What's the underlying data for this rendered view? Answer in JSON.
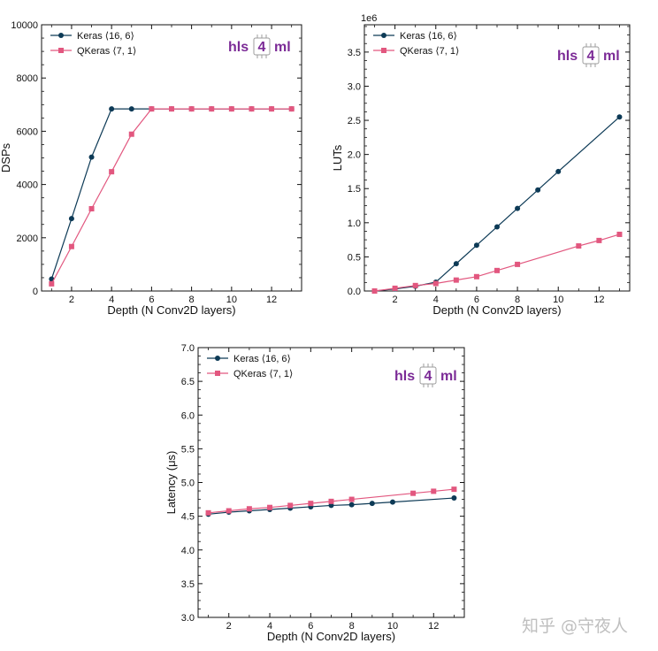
{
  "colors": {
    "keras": "#0d3a56",
    "qkeras": "#e2577f",
    "logo_purple": "#7b2a96",
    "logo_box": "#9c9c9c"
  },
  "logo": {
    "part1": "hls",
    "part2": "4",
    "part3": "ml"
  },
  "watermark": "知乎 @守夜人",
  "chart_data": [
    {
      "type": "line",
      "xlabel": "Depth (N Conv2D layers)",
      "ylabel": "DSPs",
      "offset_label": "",
      "xlim": [
        0.5,
        13.5
      ],
      "ylim": [
        0,
        10000
      ],
      "xticks": [
        2,
        4,
        6,
        8,
        10,
        12
      ],
      "xtick_labels": [
        "2",
        "4",
        "6",
        "8",
        "10",
        "12"
      ],
      "yticks": [
        0,
        2000,
        4000,
        6000,
        8000,
        10000
      ],
      "ytick_labels": [
        "0",
        "2000",
        "4000",
        "6000",
        "8000",
        "10000"
      ],
      "legend_position": "top-left",
      "grid": false,
      "series": [
        {
          "name": "Keras ⟨16, 6⟩",
          "marker": "circle",
          "x": [
            1,
            2,
            3,
            4,
            5,
            6,
            7,
            8,
            9,
            10,
            11,
            12,
            13
          ],
          "y": [
            450,
            2720,
            5030,
            6840,
            6840,
            6840,
            6840,
            6840,
            6840,
            6840,
            6840,
            6840,
            6840
          ]
        },
        {
          "name": "QKeras ⟨7, 1⟩",
          "marker": "square",
          "x": [
            1,
            2,
            3,
            4,
            5,
            6,
            7,
            8,
            9,
            10,
            11,
            12,
            13
          ],
          "y": [
            270,
            1670,
            3090,
            4480,
            5890,
            6840,
            6840,
            6840,
            6840,
            6840,
            6840,
            6840,
            6840
          ]
        }
      ]
    },
    {
      "type": "line",
      "xlabel": "Depth (N Conv2D layers)",
      "ylabel": "LUTs",
      "offset_label": "1e6",
      "xlim": [
        0.5,
        13.5
      ],
      "ylim": [
        0,
        3.9
      ],
      "xticks": [
        2,
        4,
        6,
        8,
        10,
        12
      ],
      "xtick_labels": [
        "2",
        "4",
        "6",
        "8",
        "10",
        "12"
      ],
      "yticks": [
        0,
        0.5,
        1.0,
        1.5,
        2.0,
        2.5,
        3.0,
        3.5
      ],
      "ytick_labels": [
        "0.0",
        "0.5",
        "1.0",
        "1.5",
        "2.0",
        "2.5",
        "3.0",
        "3.5"
      ],
      "legend_position": "top-left",
      "grid": false,
      "series": [
        {
          "name": "Keras ⟨16, 6⟩",
          "marker": "circle",
          "x": [
            1,
            2,
            3,
            4,
            5,
            6,
            7,
            8,
            9,
            10,
            13
          ],
          "y": [
            0.0,
            0.03,
            0.07,
            0.13,
            0.4,
            0.67,
            0.94,
            1.21,
            1.48,
            1.75,
            2.55
          ]
        },
        {
          "name": "QKeras ⟨7, 1⟩",
          "marker": "square",
          "x": [
            1,
            2,
            3,
            4,
            5,
            6,
            7,
            8,
            11,
            12,
            13
          ],
          "y": [
            0.0,
            0.04,
            0.08,
            0.11,
            0.16,
            0.21,
            0.3,
            0.39,
            0.66,
            0.74,
            0.83
          ]
        }
      ]
    },
    {
      "type": "line",
      "xlabel": "Depth (N Conv2D layers)",
      "ylabel": "Latency (μs)",
      "offset_label": "",
      "xlim": [
        0.5,
        13.5
      ],
      "ylim": [
        3.0,
        7.0
      ],
      "xticks": [
        2,
        4,
        6,
        8,
        10,
        12
      ],
      "xtick_labels": [
        "2",
        "4",
        "6",
        "8",
        "10",
        "12"
      ],
      "yticks": [
        3.0,
        3.5,
        4.0,
        4.5,
        5.0,
        5.5,
        6.0,
        6.5,
        7.0
      ],
      "ytick_labels": [
        "3.0",
        "3.5",
        "4.0",
        "4.5",
        "5.0",
        "5.5",
        "6.0",
        "6.5",
        "7.0"
      ],
      "legend_position": "top-left",
      "grid": false,
      "series": [
        {
          "name": "Keras ⟨16, 6⟩",
          "marker": "circle",
          "x": [
            1,
            2,
            3,
            4,
            5,
            6,
            7,
            8,
            9,
            10,
            13
          ],
          "y": [
            4.53,
            4.56,
            4.58,
            4.6,
            4.62,
            4.64,
            4.66,
            4.67,
            4.69,
            4.71,
            4.77
          ]
        },
        {
          "name": "QKeras ⟨7, 1⟩",
          "marker": "square",
          "x": [
            1,
            2,
            3,
            4,
            5,
            6,
            7,
            8,
            11,
            12,
            13
          ],
          "y": [
            4.55,
            4.58,
            4.61,
            4.63,
            4.66,
            4.69,
            4.72,
            4.75,
            4.84,
            4.87,
            4.9
          ]
        }
      ]
    }
  ]
}
